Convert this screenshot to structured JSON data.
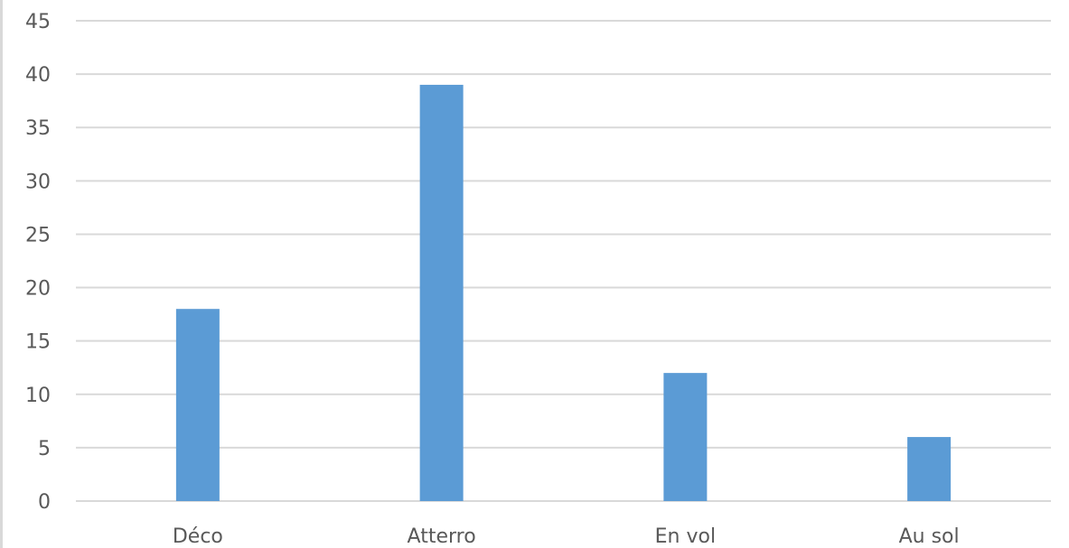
{
  "chart_data": {
    "type": "bar",
    "categories": [
      "Déco",
      "Atterro",
      "En vol",
      "Au sol"
    ],
    "values": [
      18,
      39,
      12,
      6
    ],
    "title": "",
    "xlabel": "",
    "ylabel": "",
    "ylim": [
      0,
      45
    ],
    "yticks": [
      0,
      5,
      10,
      15,
      20,
      25,
      30,
      35,
      40,
      45
    ],
    "grid": true,
    "legend": "none",
    "colors": {
      "bar": "#5b9bd5",
      "grid": "#d9d9d9",
      "axis": "#d9d9d9",
      "text": "#595959"
    }
  }
}
